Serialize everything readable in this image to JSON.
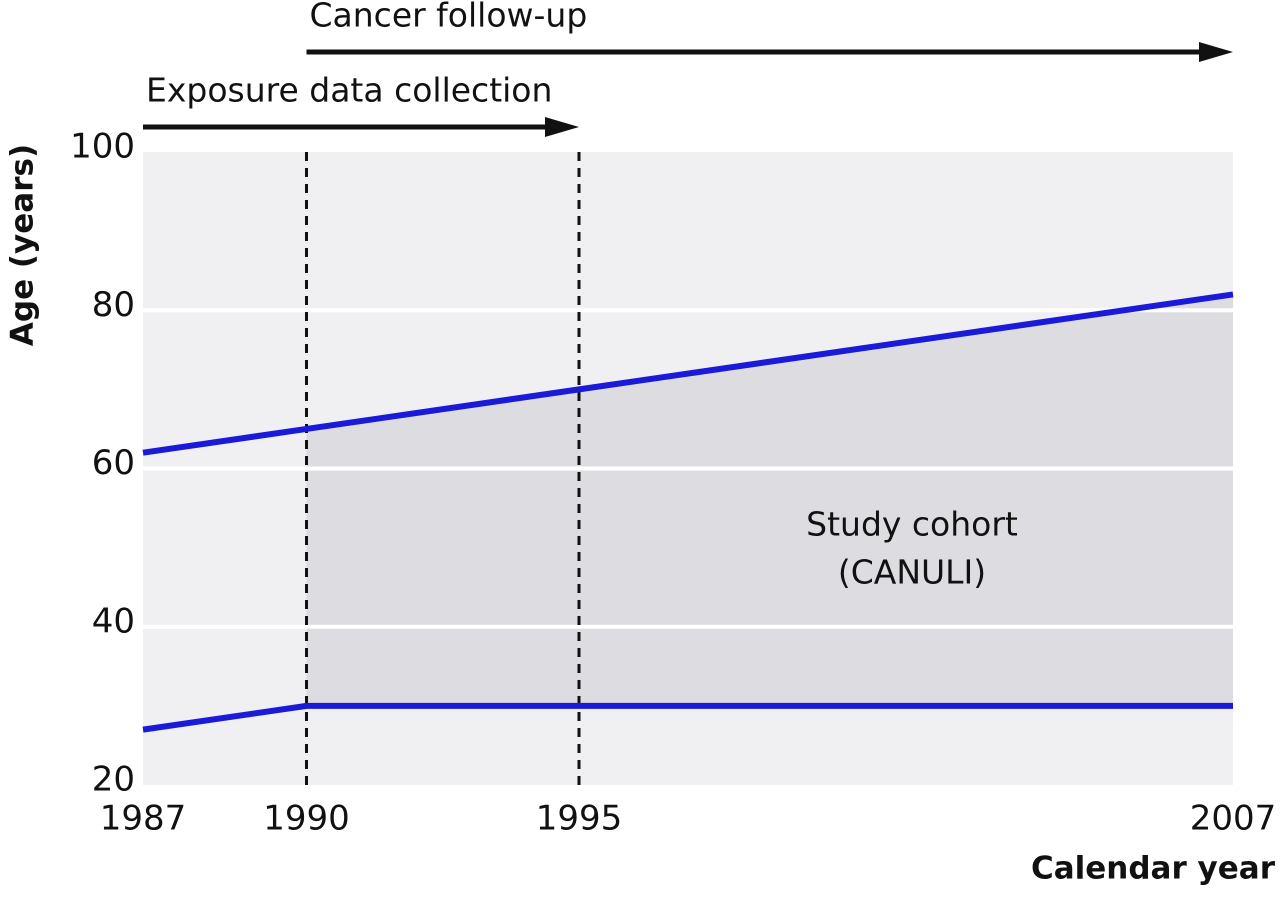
{
  "chart_data": {
    "type": "line",
    "x_label": "Calendar year",
    "y_label": "Age (years)",
    "xlim": [
      1987,
      2007
    ],
    "xticks": [
      1987,
      1990,
      1995,
      2007
    ],
    "ylim": [
      20,
      100
    ],
    "yticks": [
      20,
      40,
      60,
      80,
      100
    ],
    "grid": true,
    "series": [
      {
        "color": "#1a1ad8",
        "x": [
          1987,
          1990,
          1995,
          2007
        ],
        "values": [
          62,
          65,
          70,
          82
        ]
      },
      {
        "color": "#1a1ad8",
        "x": [
          1987,
          1990,
          2007
        ],
        "values": [
          27,
          30,
          30
        ]
      }
    ],
    "vlines": [
      1990,
      1995
    ],
    "region_label": [
      "Study cohort",
      "(CANULI)"
    ],
    "periods": [
      {
        "label": "Exposure data collection",
        "start": 1987,
        "end": 1995
      },
      {
        "label": "Cancer follow-up",
        "start": 1990,
        "end": 2007
      }
    ]
  }
}
